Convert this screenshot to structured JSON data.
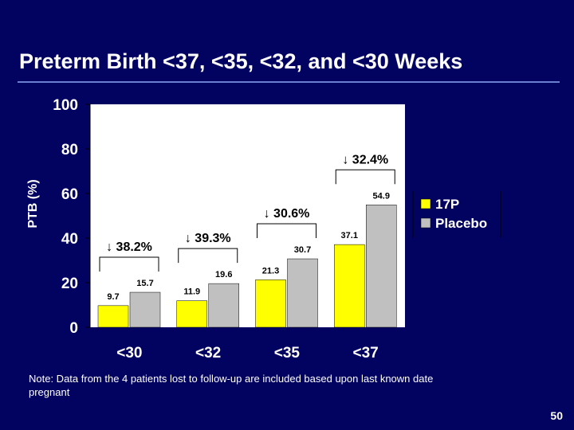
{
  "slide": {
    "title": "Preterm Birth <37, <35, <32, and <30 Weeks",
    "note": "Note: Data from the 4 patients lost to follow-up are included based upon last known date pregnant",
    "page_number": "50"
  },
  "colors": {
    "background": "#020260",
    "plot_area": "#ffffff",
    "series_17p": "#ffff00",
    "series_placebo": "#c0c0c0",
    "text": "#ffffff",
    "title_rule": "#6a7fd0"
  },
  "chart_data": {
    "type": "bar",
    "title": "",
    "xlabel": "",
    "ylabel": "PTB (%)",
    "ylim": [
      0,
      100
    ],
    "yticks": [
      "0",
      "20",
      "40",
      "60",
      "80",
      "100"
    ],
    "categories": [
      "<30",
      "<32",
      "<35",
      "<37"
    ],
    "series": [
      {
        "name": "17P",
        "values": [
          9.7,
          11.9,
          21.3,
          37.1
        ],
        "labels": [
          "9.7",
          "11.9",
          "21.3",
          "37.1"
        ]
      },
      {
        "name": "Placebo",
        "values": [
          15.7,
          19.6,
          30.7,
          54.9
        ],
        "labels": [
          "15.7",
          "19.6",
          "30.7",
          "54.9"
        ]
      }
    ],
    "reductions": [
      "↓ 38.2%",
      "↓ 39.3%",
      "↓ 30.6%",
      "↓ 32.4%"
    ],
    "legend_position": "right",
    "grid": false
  }
}
